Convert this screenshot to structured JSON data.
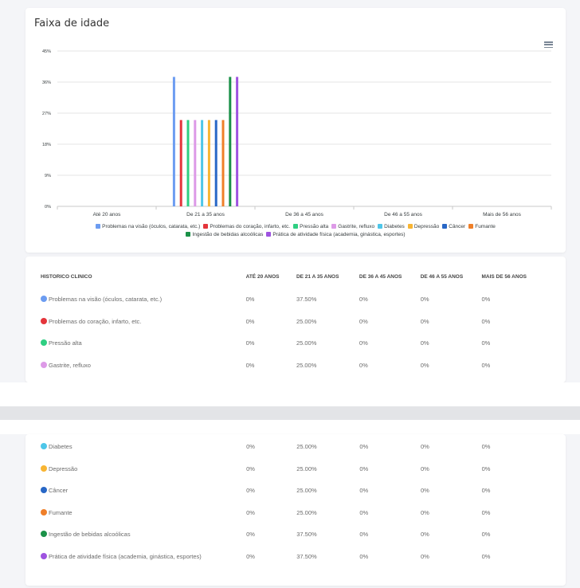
{
  "chart_data": {
    "type": "bar",
    "title": "Faixa de idade",
    "categories": [
      "Até 20 anos",
      "De 21 a 35 anos",
      "De 36 a 45 anos",
      "De 46 a 55 anos",
      "Mais de 56 anos"
    ],
    "ylim": [
      0,
      45
    ],
    "yticks": [
      "0%",
      "9%",
      "18%",
      "27%",
      "36%",
      "45%"
    ],
    "grid": true,
    "legend_position": "bottom",
    "series": [
      {
        "name": "Problemas na visão (óculos, catarata, etc.)",
        "color": "#6c9cf1",
        "values": [
          0,
          37.5,
          0,
          0,
          0
        ]
      },
      {
        "name": "Problemas do coração, infarto, etc.",
        "color": "#e4353b",
        "values": [
          0,
          25,
          0,
          0,
          0
        ]
      },
      {
        "name": "Pressão alta",
        "color": "#2fcf82",
        "values": [
          0,
          25,
          0,
          0,
          0
        ]
      },
      {
        "name": "Gastrite, refluxo",
        "color": "#dd9ae7",
        "values": [
          0,
          25,
          0,
          0,
          0
        ]
      },
      {
        "name": "Diabetes",
        "color": "#4ec6e9",
        "values": [
          0,
          25,
          0,
          0,
          0
        ]
      },
      {
        "name": "Depressão",
        "color": "#f8b533",
        "values": [
          0,
          25,
          0,
          0,
          0
        ]
      },
      {
        "name": "Câncer",
        "color": "#2867c6",
        "values": [
          0,
          25,
          0,
          0,
          0
        ]
      },
      {
        "name": "Fumante",
        "color": "#ef7f29",
        "values": [
          0,
          25,
          0,
          0,
          0
        ]
      },
      {
        "name": "Ingestão de bebidas alcoólicas",
        "color": "#1b9148",
        "values": [
          0,
          37.5,
          0,
          0,
          0
        ]
      },
      {
        "name": "Prática de atividade física (academia, ginástica, esportes)",
        "color": "#9e53e0",
        "values": [
          0,
          37.5,
          0,
          0,
          0
        ]
      }
    ]
  },
  "table": {
    "headers": [
      "HISTORICO CLINICO",
      "ATÉ 20 ANOS",
      "DE 21 A 35 ANOS",
      "DE 36 A 45 ANOS",
      "DE 46 A 55 ANOS",
      "MAIS DE 56 ANOS"
    ],
    "rows": [
      {
        "label": "Problemas na visão (óculos, catarata, etc.)",
        "color": "#6c9cf1",
        "cells": [
          "0%",
          "37.50%",
          "0%",
          "0%",
          "0%"
        ]
      },
      {
        "label": "Problemas do coração, infarto, etc.",
        "color": "#e4353b",
        "cells": [
          "0%",
          "25.00%",
          "0%",
          "0%",
          "0%"
        ]
      },
      {
        "label": "Pressão alta",
        "color": "#2fcf82",
        "cells": [
          "0%",
          "25.00%",
          "0%",
          "0%",
          "0%"
        ]
      },
      {
        "label": "Gastrite, refluxo",
        "color": "#dd9ae7",
        "cells": [
          "0%",
          "25.00%",
          "0%",
          "0%",
          "0%"
        ]
      },
      {
        "label": "Diabetes",
        "color": "#4ec6e9",
        "cells": [
          "0%",
          "25.00%",
          "0%",
          "0%",
          "0%"
        ]
      },
      {
        "label": "Depressão",
        "color": "#f8b533",
        "cells": [
          "0%",
          "25.00%",
          "0%",
          "0%",
          "0%"
        ]
      },
      {
        "label": "Câncer",
        "color": "#2867c6",
        "cells": [
          "0%",
          "25.00%",
          "0%",
          "0%",
          "0%"
        ]
      },
      {
        "label": "Fumante",
        "color": "#ef7f29",
        "cells": [
          "0%",
          "25.00%",
          "0%",
          "0%",
          "0%"
        ]
      },
      {
        "label": "Ingestão de bebidas alcoólicas",
        "color": "#1b9148",
        "cells": [
          "0%",
          "37.50%",
          "0%",
          "0%",
          "0%"
        ]
      },
      {
        "label": "Prática de atividade física (academia, ginástica, esportes)",
        "color": "#9e53e0",
        "cells": [
          "0%",
          "37.50%",
          "0%",
          "0%",
          "0%"
        ]
      }
    ]
  },
  "icons": {
    "menu": "hamburger-menu-icon"
  }
}
